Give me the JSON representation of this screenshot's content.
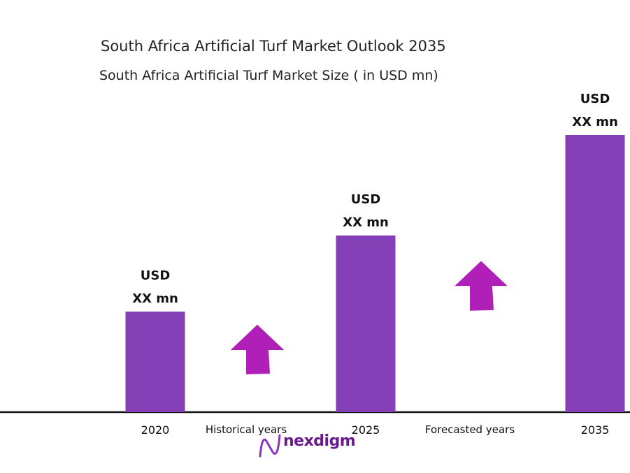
{
  "chart_data": {
    "type": "bar",
    "title": "South Africa Artificial Turf Market Outlook 2035",
    "subtitle": "South Africa Artificial Turf Market Size ( in USD mn)",
    "xlabel": "",
    "ylabel": "",
    "categories": [
      "2020",
      "2025",
      "2035"
    ],
    "values": [
      29,
      51,
      80
    ],
    "ylim": [
      0,
      100
    ],
    "data_labels": [
      [
        "USD",
        "XX mn"
      ],
      [
        "USD",
        "XX mn"
      ],
      [
        "USD",
        "XX mn"
      ]
    ],
    "annotations": [
      "Historical years",
      "Forecasted years"
    ],
    "grid": false,
    "legend": "none",
    "bar_color": "#8540b8",
    "arrow_color": "#b01fb8"
  },
  "logo": {
    "text": "nexdigm",
    "color": "#6a1a8c"
  }
}
